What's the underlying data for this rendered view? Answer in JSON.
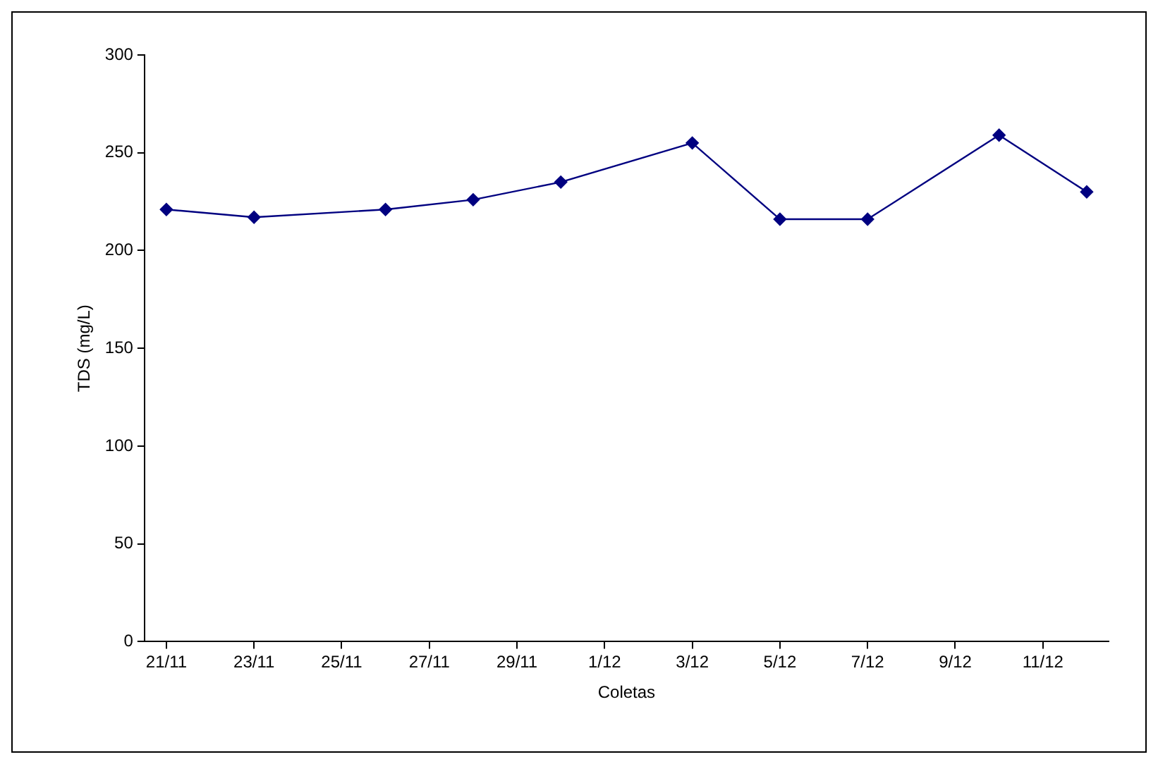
{
  "chart_data": {
    "type": "line",
    "xlabel": "Coletas",
    "ylabel": "TDS (mg/L)",
    "x": [
      "--11-21",
      "--11-23",
      "--11-26",
      "--11-28",
      "--11-30",
      "--12-03",
      "--12-05",
      "--12-07",
      "--12-10",
      "--12-12"
    ],
    "series": [
      {
        "color": "#000080",
        "values": [
          221,
          217,
          221,
          226,
          235,
          255,
          216,
          216,
          259,
          230
        ]
      }
    ],
    "xlim": [
      "--11-20T12:00",
      "--12-12T12:00"
    ],
    "xticks": [
      {
        "value": "--11-21",
        "label": "21/11"
      },
      {
        "value": "--11-23",
        "label": "23/11"
      },
      {
        "value": "--11-25",
        "label": "25/11"
      },
      {
        "value": "--11-27",
        "label": "27/11"
      },
      {
        "value": "--11-29",
        "label": "29/11"
      },
      {
        "value": "--12-01",
        "label": "1/12"
      },
      {
        "value": "--12-03",
        "label": "3/12"
      },
      {
        "value": "--12-05",
        "label": "5/12"
      },
      {
        "value": "--12-07",
        "label": "7/12"
      },
      {
        "value": "--12-09",
        "label": "9/12"
      },
      {
        "value": "--12-11",
        "label": "11/12"
      }
    ],
    "ylim": [
      0,
      300
    ],
    "yticks": [
      0,
      50,
      100,
      150,
      200,
      250,
      300
    ],
    "grid": false,
    "legend": false,
    "marker": "diamond",
    "line_style": "solid"
  }
}
